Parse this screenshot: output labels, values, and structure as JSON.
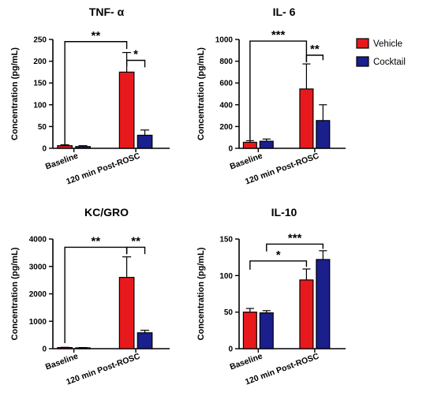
{
  "colors": {
    "vehicle": "#e8191c",
    "cocktail": "#1a1f8c",
    "axis": "#000000"
  },
  "legend": [
    {
      "name": "Vehicle",
      "color": "#e8191c"
    },
    {
      "name": "Cocktail",
      "color": "#1a1f8c"
    }
  ],
  "chart_data": [
    {
      "type": "bar",
      "title": "TNF- α",
      "ylabel": "Concentration (pg/mL)",
      "categories": [
        "Baseline",
        "120 min Post-ROSC"
      ],
      "series": [
        {
          "name": "Vehicle",
          "values": [
            6,
            175
          ],
          "errors": [
            2,
            45
          ]
        },
        {
          "name": "Cocktail",
          "values": [
            4,
            30
          ],
          "errors": [
            2,
            12
          ]
        }
      ],
      "ylim": [
        0,
        250
      ],
      "yticks": [
        "0",
        "50",
        "100",
        "150",
        "200",
        "250"
      ],
      "tick_values": [
        0,
        50,
        100,
        150,
        200,
        250
      ],
      "significance": [
        {
          "label": "**",
          "from": [
            0,
            0
          ],
          "to": [
            1,
            0
          ],
          "level": 245,
          "drop_from": 6,
          "drop_to": 228
        },
        {
          "label": "*",
          "from": [
            1,
            0
          ],
          "to": [
            1,
            1
          ],
          "level": 202,
          "drop_from": 188,
          "drop_to": 186
        }
      ]
    },
    {
      "type": "bar",
      "title": "IL- 6",
      "ylabel": "Concentration (pg/mL)",
      "categories": [
        "Baseline",
        "120 min Post-ROSC"
      ],
      "series": [
        {
          "name": "Vehicle",
          "values": [
            55,
            545
          ],
          "errors": [
            15,
            230
          ]
        },
        {
          "name": "Cocktail",
          "values": [
            65,
            255
          ],
          "errors": [
            20,
            145
          ]
        }
      ],
      "ylim": [
        0,
        1000
      ],
      "yticks": [
        "0",
        "200",
        "400",
        "600",
        "800",
        "1000"
      ],
      "tick_values": [
        0,
        200,
        400,
        600,
        800,
        1000
      ],
      "significance": [
        {
          "label": "***",
          "from": [
            0,
            0
          ],
          "to": [
            1,
            0
          ],
          "level": 985,
          "drop_from": 75,
          "drop_to": 790
        },
        {
          "label": "**",
          "from": [
            1,
            0
          ],
          "to": [
            1,
            1
          ],
          "level": 855,
          "drop_from": 790,
          "drop_to": 810
        }
      ]
    },
    {
      "type": "bar",
      "title": "KC/GRO",
      "ylabel": "Concentration (pg/mL)",
      "categories": [
        "Baseline",
        "120 min Post-ROSC"
      ],
      "series": [
        {
          "name": "Vehicle",
          "values": [
            40,
            2600
          ],
          "errors": [
            10,
            750
          ]
        },
        {
          "name": "Cocktail",
          "values": [
            30,
            580
          ],
          "errors": [
            10,
            90
          ]
        }
      ],
      "ylim": [
        0,
        4000
      ],
      "yticks": [
        "0",
        "1000",
        "2000",
        "3000",
        "4000"
      ],
      "tick_values": [
        0,
        1000,
        2000,
        3000,
        4000
      ],
      "significance": [
        {
          "label": "**",
          "from": [
            0,
            0
          ],
          "to": [
            1,
            0
          ],
          "level": 3700,
          "drop_from": 200,
          "drop_to": 3450
        },
        {
          "label": "**",
          "from": [
            1,
            0
          ],
          "to": [
            1,
            1
          ],
          "level": 3700,
          "drop_from": 3450,
          "drop_to": 3450
        }
      ]
    },
    {
      "type": "bar",
      "title": "IL-10",
      "ylabel": "Concentration (pg/mL)",
      "categories": [
        "Baseline",
        "120 min Post-ROSC"
      ],
      "series": [
        {
          "name": "Vehicle",
          "values": [
            50,
            94
          ],
          "errors": [
            5,
            15
          ]
        },
        {
          "name": "Cocktail",
          "values": [
            49,
            122
          ],
          "errors": [
            3,
            12
          ]
        }
      ],
      "ylim": [
        0,
        150
      ],
      "yticks": [
        "0",
        "50",
        "100",
        "150"
      ],
      "tick_values": [
        0,
        50,
        100,
        150
      ],
      "significance": [
        {
          "label": "*",
          "from": [
            0,
            0
          ],
          "to": [
            1,
            0
          ],
          "level": 120,
          "drop_from": 108,
          "drop_to": 112
        },
        {
          "label": "***",
          "from": [
            0,
            1
          ],
          "to": [
            1,
            1
          ],
          "level": 143,
          "drop_from": 133,
          "drop_to": 138
        }
      ]
    }
  ]
}
